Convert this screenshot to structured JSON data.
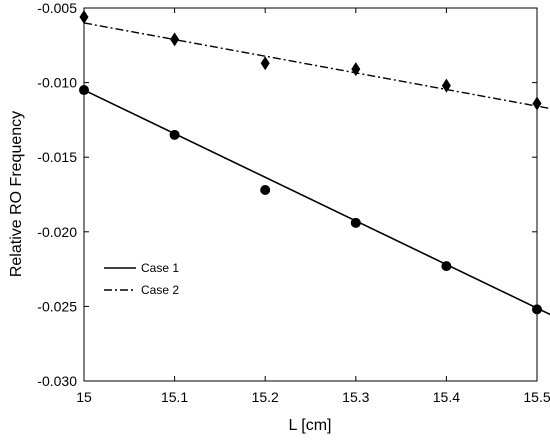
{
  "chart_data": {
    "type": "scatter",
    "xlabel": "L [cm]",
    "ylabel": "Relative RO Frequency",
    "xlim": [
      15,
      15.5
    ],
    "ylim": [
      -0.03,
      -0.005
    ],
    "xticks": [
      "15",
      "15.1",
      "15.2",
      "15.3",
      "15.4",
      "15.5"
    ],
    "yticks": [
      "-0.005",
      "-0.010",
      "-0.015",
      "-0.020",
      "-0.025",
      "-0.030"
    ],
    "xtick_values": [
      15,
      15.1,
      15.2,
      15.3,
      15.4,
      15.5
    ],
    "ytick_values": [
      -0.005,
      -0.01,
      -0.015,
      -0.02,
      -0.025,
      -0.03
    ],
    "grid": false,
    "legend_position": "middle-left",
    "series": [
      {
        "name": "Case 1",
        "marker": "circle",
        "line_style": "solid",
        "x": [
          15,
          15.1,
          15.2,
          15.3,
          15.4,
          15.5
        ],
        "y": [
          -0.0105,
          -0.0135,
          -0.0172,
          -0.0194,
          -0.0223,
          -0.0252
        ],
        "fit": {
          "x": [
            15,
            15.52
          ],
          "y": [
            -0.0105,
            -0.0257
          ]
        }
      },
      {
        "name": "Case 2",
        "marker": "diamond",
        "line_style": "dash-dot",
        "x": [
          15,
          15.1,
          15.2,
          15.3,
          15.4,
          15.5
        ],
        "y": [
          -0.0056,
          -0.0071,
          -0.0087,
          -0.0091,
          -0.0102,
          -0.0114
        ],
        "fit": {
          "x": [
            15,
            15.52
          ],
          "y": [
            -0.006,
            -0.0118
          ]
        }
      }
    ]
  }
}
